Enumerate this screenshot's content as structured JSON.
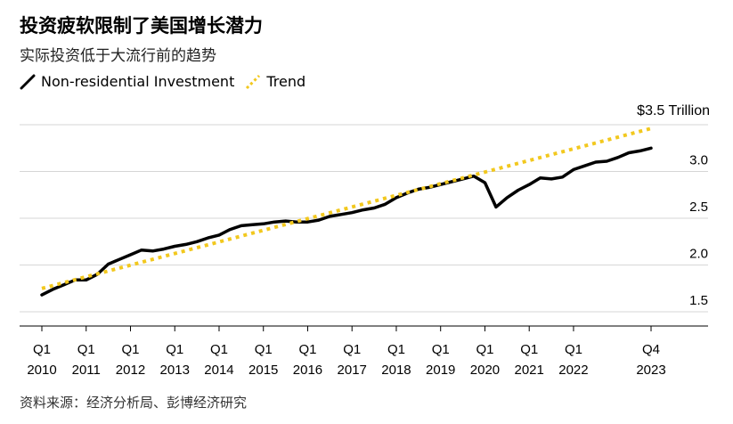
{
  "header": {
    "title": "投资疲软限制了美国增长潜力",
    "subtitle": "实际投资低于大流行前的趋势"
  },
  "legend": {
    "items": [
      {
        "label": "Non-residential Investment",
        "color": "#000000",
        "style": "solid"
      },
      {
        "label": "Trend",
        "color": "#F2C81E",
        "style": "dotted"
      }
    ]
  },
  "source": "资料来源：经济分析局、彭博经济研究",
  "chart_data": {
    "type": "line",
    "title": "投资疲软限制了美国增长潜力",
    "subtitle": "实际投资低于大流行前的趋势",
    "unit_label": "$3.5 Trillion",
    "ylim": [
      1.35,
      3.6
    ],
    "y_ticks": [
      1.5,
      2.0,
      2.5,
      3.0,
      3.5
    ],
    "y_tick_labels": [
      "1.5",
      "2.0",
      "2.5",
      "3.0",
      ""
    ],
    "x_ticks": [
      {
        "q": "Q1",
        "year": "2010",
        "t": 0
      },
      {
        "q": "Q1",
        "year": "2011",
        "t": 4
      },
      {
        "q": "Q1",
        "year": "2012",
        "t": 8
      },
      {
        "q": "Q1",
        "year": "2013",
        "t": 12
      },
      {
        "q": "Q1",
        "year": "2014",
        "t": 16
      },
      {
        "q": "Q1",
        "year": "2015",
        "t": 20
      },
      {
        "q": "Q1",
        "year": "2016",
        "t": 24
      },
      {
        "q": "Q1",
        "year": "2017",
        "t": 28
      },
      {
        "q": "Q1",
        "year": "2018",
        "t": 32
      },
      {
        "q": "Q1",
        "year": "2019",
        "t": 36
      },
      {
        "q": "Q1",
        "year": "2020",
        "t": 40
      },
      {
        "q": "Q1",
        "year": "2021",
        "t": 44
      },
      {
        "q": "Q1",
        "year": "2022",
        "t": 48
      },
      {
        "q": "Q4",
        "year": "2023",
        "t": 55
      }
    ],
    "grid": true,
    "series": [
      {
        "name": "Non-residential Investment",
        "color": "#000000",
        "values": [
          1.68,
          1.74,
          1.79,
          1.84,
          1.84,
          1.9,
          2.01,
          2.06,
          2.11,
          2.16,
          2.15,
          2.17,
          2.2,
          2.22,
          2.25,
          2.29,
          2.32,
          2.38,
          2.42,
          2.43,
          2.44,
          2.46,
          2.47,
          2.46,
          2.46,
          2.48,
          2.52,
          2.54,
          2.56,
          2.59,
          2.61,
          2.65,
          2.72,
          2.77,
          2.81,
          2.83,
          2.86,
          2.89,
          2.92,
          2.95,
          2.88,
          2.62,
          2.72,
          2.8,
          2.86,
          2.93,
          2.92,
          2.94,
          3.02,
          3.06,
          3.1,
          3.11,
          3.15,
          3.2,
          3.22,
          3.25
        ]
      },
      {
        "name": "Trend",
        "color": "#F2C81E",
        "dotted": true,
        "x": [
          0,
          55
        ],
        "values": [
          1.75,
          3.46
        ]
      }
    ]
  }
}
